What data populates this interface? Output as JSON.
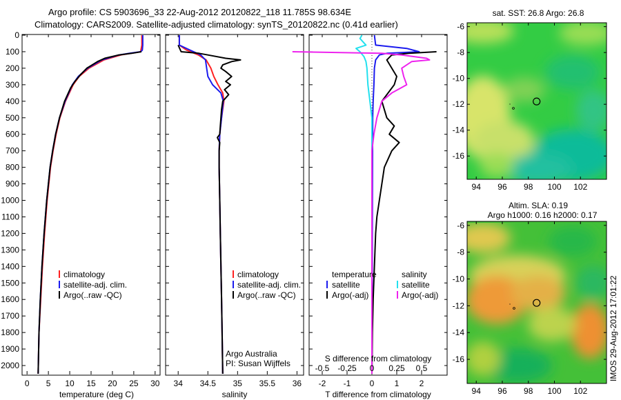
{
  "header": {
    "title_line1": "Argo profile: CS 5903696_33 22-Aug-2012 20120822_118 11.785S 98.634E",
    "title_line2": "Climatology: CARS2009. Satellite-adjusted climatology: synTS_20120822.nc (0.41d earlier)"
  },
  "colors": {
    "climatology": "#ff2020",
    "satellite": "#1a1aee",
    "argo": "#000000",
    "sal_sat": "#22e0ee",
    "sal_argo": "#ee22ee"
  },
  "chart_data": [
    {
      "type": "line",
      "name": "temperature-profile",
      "xlabel": "temperature (deg C)",
      "xlim": [
        -1,
        31
      ],
      "xticks": [
        0,
        5,
        10,
        15,
        20,
        25,
        30
      ],
      "ylim": [
        2050,
        0
      ],
      "yticks": [
        0,
        100,
        200,
        300,
        400,
        500,
        600,
        700,
        800,
        900,
        1000,
        1100,
        1200,
        1300,
        1400,
        1500,
        1600,
        1700,
        1800,
        1900,
        2000
      ],
      "legend": [
        "climatology",
        "satellite-adj. clim.",
        "Argo(..raw -QC)"
      ],
      "series": [
        {
          "name": "climatology",
          "depth": [
            0,
            60,
            100,
            120,
            150,
            200,
            250,
            300,
            400,
            500,
            600,
            700,
            800,
            1000,
            1200,
            1400,
            1600,
            1800,
            2050
          ],
          "values": [
            26.9,
            26.9,
            26.6,
            22.0,
            18.0,
            14.5,
            12.2,
            10.8,
            9.0,
            7.7,
            6.8,
            6.1,
            5.5,
            4.7,
            4.1,
            3.6,
            3.2,
            2.8,
            2.6
          ]
        },
        {
          "name": "satellite-adj. clim.",
          "depth": [
            0,
            30,
            60,
            90,
            100,
            110,
            120,
            150,
            200,
            250,
            300,
            400,
            500,
            600,
            700,
            800,
            1000,
            1200,
            1400,
            1600,
            1800,
            2050
          ],
          "values": [
            27.1,
            27.1,
            27.1,
            27.0,
            26.6,
            24.0,
            21.5,
            17.5,
            14.2,
            12.0,
            10.6,
            8.9,
            7.6,
            6.7,
            6.0,
            5.4,
            4.6,
            4.0,
            3.5,
            3.1,
            2.8,
            2.6
          ]
        },
        {
          "name": "Argo(..raw -QC)",
          "depth": [
            100,
            110,
            120,
            140,
            160,
            200,
            240,
            280,
            320,
            400,
            500,
            600,
            700,
            800,
            1000,
            1200,
            1400,
            1600,
            1800,
            2050
          ],
          "values": [
            26.8,
            24.5,
            21.5,
            18.2,
            16.5,
            14.0,
            12.5,
            11.2,
            10.2,
            8.8,
            7.6,
            6.7,
            6.0,
            5.4,
            4.6,
            4.0,
            3.5,
            3.1,
            2.8,
            2.6
          ]
        }
      ]
    },
    {
      "type": "line",
      "name": "salinity-profile",
      "xlabel": "salinity",
      "xlim": [
        33.8,
        36.1
      ],
      "xticks": [
        34,
        34.5,
        35,
        35.5,
        36
      ],
      "ylim": [
        2050,
        0
      ],
      "legend": [
        "climatology",
        "satellite-adj. clim.",
        "Argo(..raw -QC)"
      ],
      "annotation_lines": [
        "Argo Australia",
        "PI: Susan Wijffels"
      ],
      "series": [
        {
          "name": "climatology",
          "depth": [
            0,
            60,
            90,
            120,
            150,
            200,
            250,
            300,
            350,
            400,
            500,
            600,
            700,
            800,
            1000,
            1200,
            1400,
            1600,
            1800,
            2050
          ],
          "values": [
            34.02,
            34.02,
            34.14,
            34.34,
            34.47,
            34.55,
            34.6,
            34.67,
            34.75,
            34.77,
            34.73,
            34.7,
            34.69,
            34.69,
            34.7,
            34.71,
            34.72,
            34.73,
            34.74,
            34.75
          ]
        },
        {
          "name": "satellite-adj. clim.",
          "depth": [
            0,
            60,
            90,
            120,
            150,
            200,
            250,
            300,
            350,
            400,
            500,
            600,
            700,
            800,
            1000,
            1200,
            1400,
            1600,
            1800,
            2050
          ],
          "values": [
            34.02,
            34.02,
            34.2,
            34.38,
            34.46,
            34.48,
            34.5,
            34.58,
            34.72,
            34.76,
            34.73,
            34.7,
            34.69,
            34.69,
            34.7,
            34.71,
            34.72,
            34.73,
            34.74,
            34.75
          ]
        },
        {
          "name": "Argo(..raw -QC)",
          "depth": [
            60,
            100,
            110,
            120,
            140,
            150,
            160,
            180,
            200,
            220,
            250,
            280,
            300,
            330,
            360,
            400,
            450,
            500,
            550,
            600,
            620,
            650,
            700,
            800,
            1000,
            1200,
            1400,
            1600,
            1800,
            2050
          ],
          "values": [
            34.0,
            34.05,
            34.35,
            34.5,
            34.8,
            35.05,
            34.9,
            34.75,
            34.72,
            34.8,
            34.9,
            34.8,
            34.88,
            34.78,
            34.85,
            34.75,
            34.73,
            34.72,
            34.71,
            34.7,
            34.66,
            34.7,
            34.69,
            34.69,
            34.7,
            34.71,
            34.72,
            34.73,
            34.74,
            34.75
          ]
        }
      ]
    },
    {
      "type": "line",
      "name": "difference-profile",
      "xlabel": "T difference from climatology",
      "xlabel_top": "S difference from climatology",
      "xlim": [
        -2.5,
        3.0
      ],
      "xticks": [
        -2,
        -1,
        0,
        1,
        2
      ],
      "sticks": [
        -0.5,
        -0.25,
        0,
        0.25,
        0.5
      ],
      "sticks_labels": [
        "-0.5",
        "-0.25",
        "0",
        "0.25",
        "0.5"
      ],
      "ylim": [
        2050,
        0
      ],
      "legend_temperature": [
        "temperature",
        "satellite",
        "Argo(-adj)"
      ],
      "legend_salinity": [
        "salinity",
        "satellite",
        "Argo(-adj)"
      ],
      "series": [
        {
          "name": "T satellite",
          "depth": [
            0,
            60,
            80,
            100,
            110,
            120,
            150,
            200,
            300,
            400,
            500,
            1000,
            2050
          ],
          "values": [
            0.1,
            0.15,
            1.4,
            1.9,
            0.6,
            0.3,
            0.15,
            0.1,
            0.08,
            0.05,
            0.03,
            0.02,
            0.0
          ]
        },
        {
          "name": "T Argo(-adj)",
          "depth": [
            100,
            110,
            120,
            150,
            200,
            250,
            300,
            400,
            500,
            550,
            600,
            650,
            700,
            800,
            900,
            1000,
            1100,
            1200,
            1400,
            1600,
            1800,
            2050
          ],
          "values": [
            2.6,
            1.5,
            0.8,
            0.6,
            0.8,
            1.0,
            0.9,
            0.4,
            0.6,
            0.9,
            0.7,
            1.1,
            0.8,
            0.5,
            0.4,
            0.3,
            0.2,
            0.15,
            0.1,
            0.05,
            0.02,
            0.0
          ]
        },
        {
          "name": "S satellite",
          "depth": [
            0,
            20,
            60,
            80,
            100,
            130,
            160,
            200,
            300,
            400,
            500,
            1000,
            2050
          ],
          "values": [
            -0.1,
            -0.12,
            -0.06,
            -0.16,
            -0.12,
            -0.08,
            -0.06,
            -0.05,
            -0.04,
            -0.02,
            0.0,
            0.0,
            0.0
          ]
        },
        {
          "name": "S Argo(-adj)",
          "depth": [
            100,
            110,
            120,
            140,
            150,
            160,
            200,
            250,
            300,
            350,
            400,
            500,
            600,
            700,
            800,
            1000,
            1500,
            2050
          ],
          "values": [
            -0.8,
            0.1,
            0.3,
            0.55,
            0.58,
            0.4,
            0.3,
            0.32,
            0.35,
            0.2,
            0.1,
            0.05,
            0.02,
            0.0,
            0.0,
            0.0,
            0.0,
            0.0
          ]
        }
      ]
    },
    {
      "type": "heatmap",
      "name": "map-sst",
      "title": "sat. SST: 26.8 Argo: 26.8",
      "xticks": [
        94,
        96,
        98,
        100,
        102
      ],
      "yticks": [
        -6,
        -8,
        -10,
        -12,
        -14,
        -16
      ],
      "xlim": [
        93.3,
        104
      ],
      "ylim": [
        -17.8,
        -5.7
      ],
      "argo_position": {
        "lon": 98.634,
        "lat": -11.785
      }
    },
    {
      "type": "heatmap",
      "name": "map-sla",
      "title_line1": "Altim. SLA: 0.19",
      "title_line2": "Argo h1000: 0.16 h2000: 0.17",
      "xticks": [
        94,
        96,
        98,
        100,
        102
      ],
      "yticks": [
        -6,
        -8,
        -10,
        -12,
        -14,
        -16
      ],
      "xlim": [
        93.3,
        104
      ],
      "ylim": [
        -17.8,
        -5.7
      ],
      "argo_position": {
        "lon": 98.634,
        "lat": -11.785
      }
    }
  ],
  "footer_stamp": "IMOS 29-Aug-2012 17:01:22"
}
